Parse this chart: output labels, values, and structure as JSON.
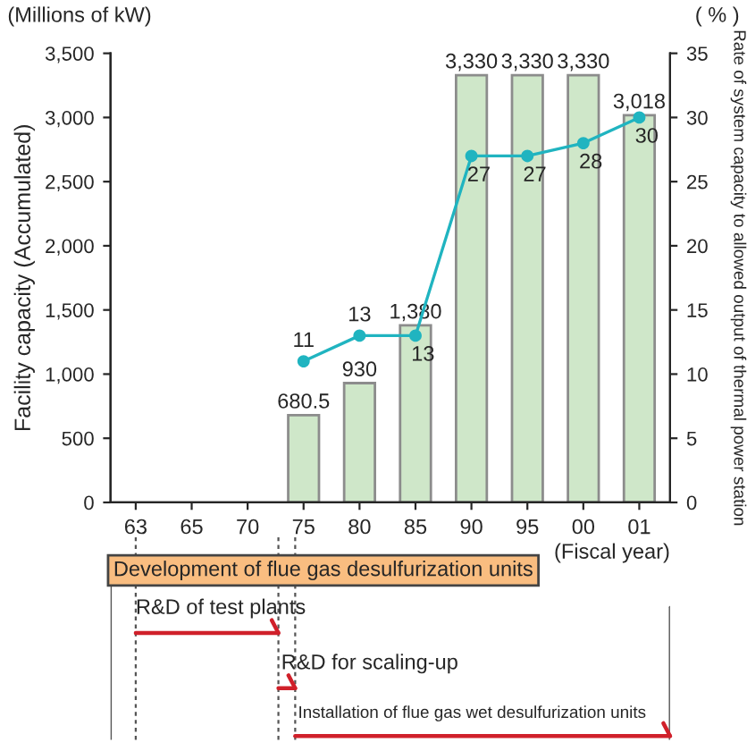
{
  "chart_data": {
    "type": "bar",
    "categories": [
      "63",
      "65",
      "70",
      "75",
      "80",
      "85",
      "90",
      "95",
      "00",
      "01"
    ],
    "series": [
      {
        "color": "#cfe7c9",
        "values": [
          null,
          null,
          null,
          680.5,
          930,
          1380,
          3330,
          3330,
          3330,
          3018
        ],
        "value_labels": [
          null,
          null,
          null,
          "680.5",
          "930",
          "1,380",
          "3,330",
          "3,330",
          "3,330",
          "3,018"
        ]
      },
      {
        "type": "line",
        "axis": "y2",
        "color": "#20b4c0",
        "values": [
          null,
          null,
          null,
          11,
          13,
          13,
          27,
          27,
          28,
          30
        ],
        "value_labels": [
          null,
          null,
          null,
          "11",
          "13",
          "13",
          "27",
          "27",
          "28",
          "30"
        ]
      }
    ],
    "ylabel": "Facility capacity (Accumulated)",
    "y2label": "Rate of system capacity to allowed output of thermal power station",
    "xlabel": "(Fiscal year)",
    "ylim": [
      0,
      3500
    ],
    "yticks": [
      0,
      500,
      {
        "value": 1000,
        "label": "1,000"
      },
      {
        "value": 1500,
        "label": "1,500"
      },
      {
        "value": 2000,
        "label": "2,000"
      },
      {
        "value": 2500,
        "label": "2,500"
      },
      {
        "value": 3000,
        "label": "3,000"
      },
      {
        "value": 3500,
        "label": "3,500"
      }
    ],
    "y2lim": [
      0,
      35
    ],
    "y2ticks": [
      0,
      5,
      10,
      15,
      20,
      25,
      30,
      35
    ],
    "marker": "circle",
    "annotations": [
      "(Millions of kW)",
      "( % )",
      "Development of flue gas desulfurization units",
      "R&D of test plants",
      "R&D for scaling-up",
      "Installation of flue gas wet desulfurization units"
    ]
  }
}
